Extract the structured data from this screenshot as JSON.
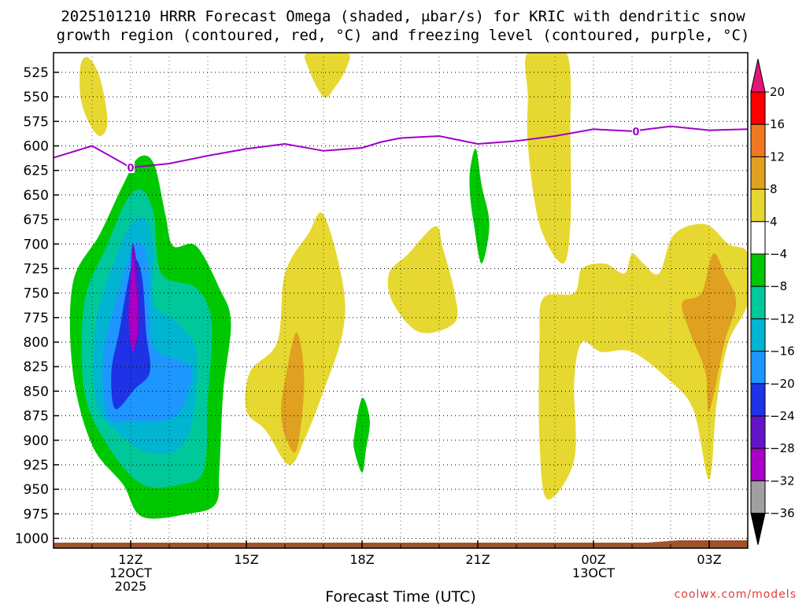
{
  "title": {
    "line1": "2025101210 HRRR Forecast Omega (shaded, μbar/s) for KRIC with dendritic snow",
    "line2": "growth region (contoured, red, °C) and freezing level (contoured, purple, °C)"
  },
  "credit": "coolwx.com/models",
  "chart_data": {
    "type": "contour-time-height",
    "title": "2025101210 HRRR Forecast Omega (shaded, μbar/s) for KRIC with dendritic snow growth region (contoured, red, °C) and freezing level (contoured, purple, °C)",
    "xlabel": "Forecast Time (UTC)",
    "ylabel": "",
    "xlim_hours": [
      10,
      28
    ],
    "ylim_mb": [
      1010,
      505
    ],
    "y_ticks": [
      525,
      550,
      575,
      600,
      625,
      650,
      675,
      700,
      725,
      750,
      775,
      800,
      825,
      850,
      875,
      900,
      925,
      950,
      975,
      1000
    ],
    "x_ticks": [
      {
        "hour": 12,
        "lines": [
          "12Z",
          "12OCT",
          "2025"
        ]
      },
      {
        "hour": 15,
        "lines": [
          "15Z"
        ]
      },
      {
        "hour": 18,
        "lines": [
          "18Z"
        ]
      },
      {
        "hour": 21,
        "lines": [
          "21Z"
        ]
      },
      {
        "hour": 24,
        "lines": [
          "00Z",
          "13OCT"
        ]
      },
      {
        "hour": 27,
        "lines": [
          "03Z"
        ]
      }
    ],
    "colorbar": {
      "labels": [
        "20",
        "16",
        "12",
        "8",
        "4",
        "−4",
        "−8",
        "−12",
        "−16",
        "−20",
        "−24",
        "−28",
        "−32",
        "−36"
      ],
      "colors": [
        "#ff0000",
        "#f07820",
        "#e0a020",
        "#e6d830",
        "#ffffff",
        "#00c800",
        "#00c89b",
        "#00b4d2",
        "#1e96ff",
        "#1e32e6",
        "#6414c8",
        "#aa00c8",
        "#a0a0a0"
      ],
      "top_arrow_color": "#e6147a",
      "bottom_arrow_color": "#000000"
    },
    "freezing_level": {
      "label": "0",
      "color": "#a000c8",
      "hours": [
        10,
        11,
        12,
        13,
        14,
        15,
        16,
        17,
        18,
        18.5,
        19,
        20,
        21,
        22,
        23,
        24,
        25,
        26,
        27,
        28
      ],
      "pressure_mb": [
        612,
        600,
        622,
        618,
        610,
        603,
        598,
        605,
        602,
        596,
        592,
        590,
        598,
        595,
        590,
        583,
        585,
        580,
        584,
        583
      ]
    },
    "omega_regions": [
      {
        "level": "-8",
        "color": "#00c800",
        "points": [
          [
            11.2,
            690
          ],
          [
            11.8,
            640
          ],
          [
            12.2,
            612
          ],
          [
            12.6,
            618
          ],
          [
            12.9,
            670
          ],
          [
            13.1,
            702
          ],
          [
            13.7,
            702
          ],
          [
            14.3,
            745
          ],
          [
            14.6,
            780
          ],
          [
            14.4,
            850
          ],
          [
            14.3,
            930
          ],
          [
            14.2,
            965
          ],
          [
            13.5,
            975
          ],
          [
            12.3,
            978
          ],
          [
            11.8,
            945
          ],
          [
            11.0,
            905
          ],
          [
            10.5,
            830
          ],
          [
            10.5,
            740
          ]
        ]
      },
      {
        "level": "-12",
        "color": "#00c89b",
        "points": [
          [
            11.4,
            700
          ],
          [
            11.9,
            655
          ],
          [
            12.3,
            645
          ],
          [
            12.6,
            670
          ],
          [
            12.8,
            730
          ],
          [
            13.7,
            745
          ],
          [
            14.1,
            780
          ],
          [
            14.0,
            860
          ],
          [
            13.9,
            930
          ],
          [
            13.3,
            945
          ],
          [
            12.3,
            945
          ],
          [
            11.4,
            905
          ],
          [
            10.8,
            850
          ],
          [
            10.8,
            760
          ]
        ]
      },
      {
        "level": "-16",
        "color": "#00b4d2",
        "points": [
          [
            11.6,
            715
          ],
          [
            12.0,
            680
          ],
          [
            12.4,
            675
          ],
          [
            12.6,
            710
          ],
          [
            12.6,
            760
          ],
          [
            13.2,
            780
          ],
          [
            13.7,
            810
          ],
          [
            13.6,
            880
          ],
          [
            13.2,
            910
          ],
          [
            12.4,
            912
          ],
          [
            11.6,
            890
          ],
          [
            11.1,
            860
          ],
          [
            11.1,
            780
          ]
        ]
      },
      {
        "level": "-20",
        "color": "#1e96ff",
        "points": [
          [
            11.8,
            735
          ],
          [
            12.1,
            700
          ],
          [
            12.4,
            710
          ],
          [
            12.5,
            760
          ],
          [
            12.6,
            805
          ],
          [
            13.3,
            820
          ],
          [
            13.6,
            830
          ],
          [
            13.3,
            870
          ],
          [
            12.8,
            880
          ],
          [
            12.0,
            880
          ],
          [
            11.4,
            875
          ],
          [
            11.3,
            810
          ]
        ]
      },
      {
        "level": "-24",
        "color": "#1e32e6",
        "points": [
          [
            11.9,
            745
          ],
          [
            12.1,
            715
          ],
          [
            12.3,
            735
          ],
          [
            12.4,
            790
          ],
          [
            12.5,
            830
          ],
          [
            12.1,
            848
          ],
          [
            11.6,
            868
          ],
          [
            11.5,
            830
          ],
          [
            11.7,
            790
          ]
        ]
      },
      {
        "level": "-28",
        "color": "#6414c8",
        "points": [
          [
            12.0,
            730
          ],
          [
            12.05,
            700
          ],
          [
            12.15,
            720
          ],
          [
            12.25,
            780
          ],
          [
            12.1,
            805
          ],
          [
            11.95,
            780
          ],
          [
            11.95,
            760
          ]
        ]
      },
      {
        "level": "-32",
        "color": "#aa00c8",
        "points": [
          [
            12.0,
            735
          ],
          [
            12.05,
            710
          ],
          [
            12.12,
            730
          ],
          [
            12.18,
            780
          ],
          [
            12.06,
            810
          ],
          [
            11.95,
            780
          ]
        ]
      },
      {
        "level": "4",
        "color": "#e6d830",
        "points": [
          [
            10.7,
            518
          ],
          [
            10.9,
            510
          ],
          [
            11.2,
            530
          ],
          [
            11.4,
            575
          ],
          [
            11.2,
            590
          ],
          [
            10.9,
            575
          ],
          [
            10.7,
            550
          ]
        ]
      },
      {
        "level": "4",
        "color": "#e6d830",
        "points": [
          [
            16.6,
            505
          ],
          [
            17.6,
            505
          ],
          [
            17.6,
            520
          ],
          [
            17.3,
            540
          ],
          [
            17.0,
            550
          ],
          [
            16.6,
            520
          ]
        ]
      },
      {
        "level": "4",
        "color": "#e6d830",
        "points": [
          [
            16.0,
            730
          ],
          [
            16.6,
            690
          ],
          [
            17.0,
            670
          ],
          [
            17.5,
            740
          ],
          [
            17.5,
            790
          ],
          [
            17.0,
            850
          ],
          [
            16.5,
            900
          ],
          [
            16.1,
            925
          ],
          [
            15.5,
            890
          ],
          [
            15.0,
            870
          ],
          [
            15.1,
            830
          ],
          [
            15.8,
            800
          ]
        ]
      },
      {
        "level": "8",
        "color": "#e0a020",
        "points": [
          [
            16.0,
            840
          ],
          [
            16.3,
            790
          ],
          [
            16.5,
            840
          ],
          [
            16.3,
            910
          ],
          [
            16.0,
            895
          ],
          [
            15.9,
            870
          ]
        ]
      },
      {
        "level": "4",
        "color": "#e6d830",
        "points": [
          [
            18.7,
            730
          ],
          [
            19.2,
            710
          ],
          [
            19.9,
            682
          ],
          [
            20.1,
            705
          ],
          [
            20.4,
            750
          ],
          [
            20.4,
            780
          ],
          [
            19.5,
            790
          ],
          [
            18.8,
            760
          ]
        ]
      },
      {
        "level": "4",
        "color": "#e6d830",
        "points": [
          [
            22.3,
            505
          ],
          [
            23.3,
            505
          ],
          [
            23.4,
            590
          ],
          [
            23.4,
            680
          ],
          [
            23.2,
            720
          ],
          [
            22.6,
            680
          ],
          [
            22.3,
            600
          ],
          [
            22.3,
            550
          ]
        ]
      },
      {
        "level": "4",
        "color": "#e6d830",
        "points": [
          [
            22.7,
            755
          ],
          [
            23.5,
            750
          ],
          [
            23.7,
            725
          ],
          [
            24.3,
            720
          ],
          [
            24.8,
            730
          ],
          [
            25.0,
            710
          ],
          [
            25.3,
            720
          ],
          [
            25.7,
            730
          ],
          [
            26.1,
            690
          ],
          [
            26.9,
            680
          ],
          [
            27.5,
            700
          ],
          [
            28.0,
            710
          ],
          [
            28.0,
            760
          ],
          [
            27.5,
            800
          ],
          [
            27.2,
            860
          ],
          [
            27.0,
            940
          ],
          [
            26.6,
            870
          ],
          [
            26.0,
            840
          ],
          [
            25.0,
            810
          ],
          [
            24.2,
            810
          ],
          [
            23.7,
            800
          ],
          [
            23.5,
            840
          ],
          [
            23.5,
            920
          ],
          [
            22.8,
            960
          ],
          [
            22.6,
            900
          ],
          [
            22.6,
            800
          ]
        ]
      },
      {
        "level": "8",
        "color": "#e0a020",
        "points": [
          [
            26.8,
            750
          ],
          [
            27.1,
            710
          ],
          [
            27.4,
            730
          ],
          [
            27.7,
            760
          ],
          [
            27.4,
            800
          ],
          [
            27.0,
            870
          ],
          [
            26.9,
            830
          ],
          [
            26.5,
            790
          ],
          [
            26.3,
            760
          ]
        ]
      },
      {
        "level": "-8",
        "color": "#00c800",
        "points": [
          [
            20.8,
            625
          ],
          [
            20.95,
            603
          ],
          [
            21.1,
            640
          ],
          [
            21.3,
            680
          ],
          [
            21.1,
            720
          ],
          [
            20.9,
            680
          ],
          [
            20.8,
            650
          ]
        ]
      },
      {
        "level": "-8",
        "color": "#00c800",
        "points": [
          [
            17.8,
            895
          ],
          [
            18.0,
            857
          ],
          [
            18.2,
            880
          ],
          [
            18.1,
            910
          ],
          [
            18.0,
            933
          ],
          [
            17.8,
            910
          ]
        ]
      }
    ],
    "surface": {
      "color": "#a0522d",
      "label": "terrain"
    }
  }
}
